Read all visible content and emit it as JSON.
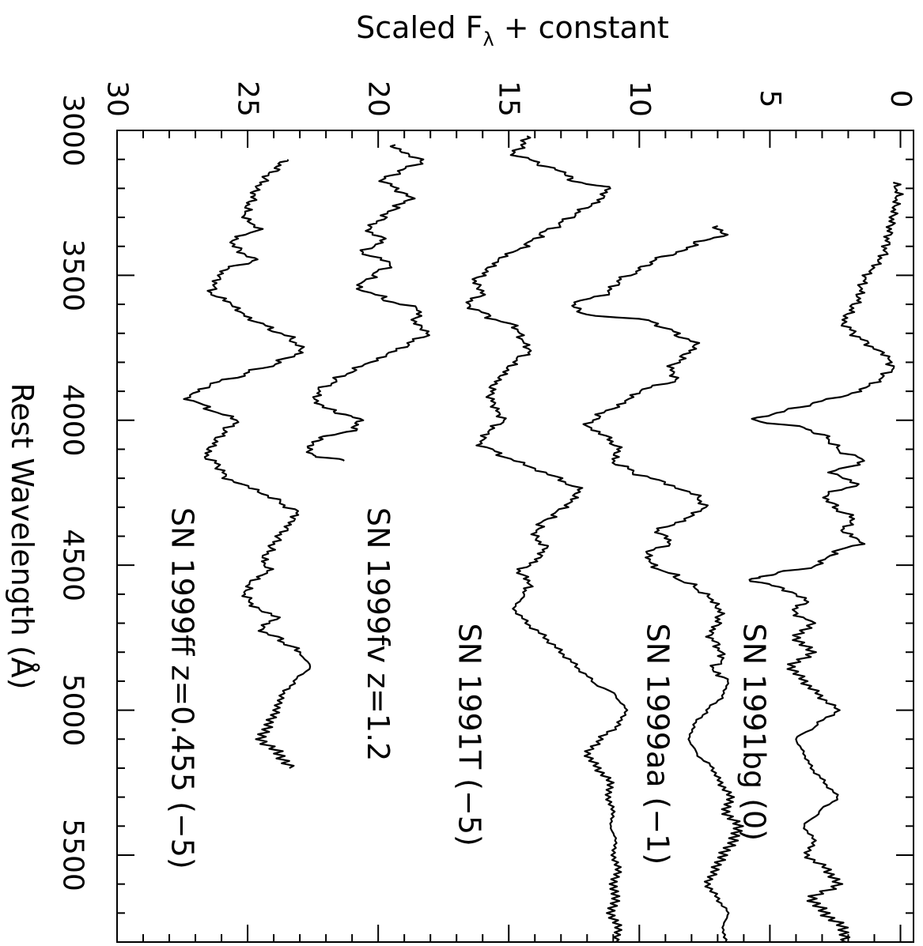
{
  "chart_data": {
    "type": "line",
    "title": "",
    "xlabel": "Rest Wavelength (Å)",
    "ylabel": "Scaled F",
    "ylabel_sub": "λ",
    "ylabel_suffix": " + constant",
    "xlim": [
      3000,
      5800
    ],
    "ylim": [
      -0.5,
      30
    ],
    "x_ticks": [
      3000,
      3500,
      4000,
      4500,
      5000,
      5500
    ],
    "y_ticks": [
      0,
      5,
      10,
      15,
      20,
      25,
      30
    ],
    "grid": false,
    "series": [
      {
        "name": "SN 1999ff z=0.455 (−5)",
        "x": [
          3100,
          3130,
          3160,
          3200,
          3230,
          3260,
          3300,
          3340,
          3380,
          3420,
          3450,
          3480,
          3520,
          3560,
          3600,
          3640,
          3680,
          3720,
          3760,
          3800,
          3840,
          3880,
          3920,
          3960,
          4000,
          4040,
          4080,
          4120,
          4160,
          4200,
          4240,
          4280,
          4320,
          4360,
          4400,
          4440,
          4480,
          4520,
          4560,
          4600,
          4640,
          4680,
          4720,
          4760,
          4800,
          4850,
          4900,
          4950,
          5000,
          5050,
          5100,
          5150,
          5200
        ],
        "y": [
          23.5,
          23.9,
          24.3,
          24.6,
          24.8,
          25.0,
          25.1,
          24.6,
          25.6,
          25.3,
          24.7,
          25.9,
          26.2,
          26.4,
          25.6,
          25.1,
          24.2,
          23.3,
          22.9,
          23.8,
          25.1,
          26.5,
          27.3,
          26.5,
          25.4,
          25.9,
          26.3,
          26.6,
          26.1,
          25.8,
          24.7,
          23.8,
          23.1,
          23.4,
          23.8,
          24.1,
          24.4,
          24.2,
          24.9,
          25.1,
          24.8,
          23.9,
          24.5,
          23.7,
          23.0,
          22.6,
          23.2,
          23.7,
          23.9,
          24.2,
          24.5,
          23.8,
          23.4
        ]
      },
      {
        "name": "SN 1999fv z=1.2",
        "x": [
          3050,
          3080,
          3110,
          3140,
          3170,
          3200,
          3230,
          3260,
          3300,
          3340,
          3380,
          3420,
          3460,
          3500,
          3540,
          3580,
          3620,
          3660,
          3700,
          3740,
          3780,
          3820,
          3860,
          3900,
          3940,
          3970,
          4000,
          4030,
          4060,
          4090,
          4120,
          4140
        ],
        "y": [
          19.5,
          18.9,
          18.3,
          19.2,
          19.8,
          19.4,
          18.7,
          19.3,
          19.8,
          20.4,
          19.8,
          20.6,
          19.5,
          20.2,
          20.8,
          19.8,
          18.4,
          18.6,
          18.1,
          18.9,
          19.8,
          20.8,
          21.6,
          22.3,
          22.4,
          21.6,
          20.7,
          20.9,
          22.1,
          22.7,
          22.5,
          21.3
        ]
      },
      {
        "name": "SN 1991T (−5)",
        "x": [
          3020,
          3050,
          3080,
          3110,
          3140,
          3170,
          3200,
          3240,
          3280,
          3320,
          3360,
          3400,
          3440,
          3480,
          3520,
          3560,
          3600,
          3640,
          3680,
          3720,
          3760,
          3800,
          3840,
          3880,
          3920,
          3960,
          4000,
          4040,
          4080,
          4120,
          4160,
          4200,
          4240,
          4280,
          4320,
          4360,
          4400,
          4440,
          4480,
          4520,
          4560,
          4600,
          4650,
          4700,
          4750,
          4800,
          4850,
          4900,
          4950,
          5000,
          5050,
          5100,
          5150,
          5200,
          5250,
          5300,
          5350,
          5400,
          5450,
          5500,
          5550,
          5600,
          5650,
          5700,
          5750,
          5800
        ],
        "y": [
          14.2,
          14.5,
          14.8,
          14.0,
          13.0,
          12.6,
          11.2,
          11.5,
          12.3,
          13.0,
          13.8,
          14.4,
          15.3,
          15.8,
          16.3,
          16.0,
          16.6,
          15.8,
          14.7,
          14.5,
          14.2,
          14.8,
          15.2,
          15.6,
          15.7,
          15.5,
          15.2,
          15.8,
          16.1,
          15.3,
          14.2,
          13.1,
          12.3,
          12.6,
          13.2,
          13.8,
          14.0,
          13.6,
          13.9,
          14.6,
          14.2,
          14.4,
          14.8,
          14.3,
          13.6,
          13.0,
          12.4,
          11.8,
          10.9,
          10.5,
          10.8,
          11.5,
          12.0,
          11.6,
          11.1,
          11.2,
          11.0,
          11.1,
          10.9,
          11.0,
          10.8,
          11.0,
          10.9,
          11.1,
          10.8,
          10.9
        ]
      },
      {
        "name": "SN 1999aa (−1)",
        "x": [
          3330,
          3360,
          3390,
          3420,
          3450,
          3480,
          3520,
          3560,
          3600,
          3630,
          3660,
          3700,
          3740,
          3780,
          3820,
          3860,
          3900,
          3940,
          3980,
          4020,
          4060,
          4100,
          4140,
          4180,
          4220,
          4260,
          4300,
          4340,
          4380,
          4420,
          4460,
          4500,
          4540,
          4580,
          4620,
          4660,
          4700,
          4740,
          4780,
          4820,
          4860,
          4900,
          4950,
          5000,
          5050,
          5100,
          5150,
          5200,
          5250,
          5300,
          5350,
          5400,
          5450,
          5500,
          5550,
          5600,
          5650,
          5700,
          5750,
          5800
        ],
        "y": [
          7.0,
          6.8,
          7.8,
          8.5,
          9.5,
          10.0,
          10.8,
          11.2,
          12.6,
          12.2,
          9.5,
          8.6,
          7.8,
          8.3,
          8.8,
          8.6,
          10.0,
          10.6,
          11.5,
          12.0,
          11.2,
          10.8,
          11.0,
          10.2,
          8.9,
          7.8,
          7.5,
          8.2,
          9.3,
          8.8,
          9.7,
          9.5,
          8.6,
          7.8,
          7.2,
          6.9,
          7.0,
          7.3,
          7.0,
          6.8,
          7.2,
          6.6,
          6.8,
          7.4,
          7.9,
          8.1,
          7.8,
          7.2,
          6.9,
          6.5,
          6.7,
          6.2,
          6.4,
          6.8,
          7.1,
          7.4,
          7.0,
          6.6,
          6.8,
          6.7
        ]
      },
      {
        "name": "SN 1991bg (0)",
        "x": [
          3180,
          3220,
          3260,
          3300,
          3340,
          3380,
          3420,
          3460,
          3500,
          3540,
          3580,
          3620,
          3660,
          3700,
          3740,
          3780,
          3820,
          3860,
          3900,
          3940,
          3970,
          4000,
          4030,
          4060,
          4100,
          4140,
          4180,
          4220,
          4260,
          4300,
          4340,
          4380,
          4420,
          4460,
          4500,
          4530,
          4550,
          4580,
          4620,
          4660,
          4700,
          4750,
          4800,
          4850,
          4900,
          4950,
          5000,
          5050,
          5100,
          5150,
          5200,
          5250,
          5300,
          5350,
          5400,
          5450,
          5500,
          5550,
          5600,
          5650,
          5700,
          5750,
          5800
        ],
        "y": [
          0.2,
          0.1,
          0.2,
          0.3,
          0.4,
          0.5,
          0.6,
          0.9,
          1.3,
          1.5,
          1.6,
          1.9,
          2.2,
          1.8,
          1.2,
          0.5,
          0.3,
          0.8,
          1.6,
          3.2,
          4.6,
          5.6,
          3.5,
          2.8,
          2.4,
          1.4,
          2.6,
          1.7,
          2.9,
          2.5,
          1.8,
          2.2,
          1.5,
          2.6,
          3.2,
          4.8,
          5.8,
          4.5,
          3.6,
          4.1,
          3.4,
          4.0,
          3.4,
          4.2,
          3.7,
          3.1,
          2.4,
          3.2,
          4.0,
          3.7,
          3.4,
          2.9,
          2.4,
          3.1,
          3.7,
          3.3,
          3.6,
          2.8,
          2.4,
          3.4,
          2.9,
          2.2,
          2.1
        ]
      }
    ],
    "annotations": [
      {
        "text": "SN 1999ff z=0.455 (−5)",
        "x": 4300,
        "y": 27.5
      },
      {
        "text": "SN 1999fv z=1.2",
        "x": 4300,
        "y": 20.0
      },
      {
        "text": "SN 1991T  (−5)",
        "x": 4700,
        "y": 16.5
      },
      {
        "text": "SN 1999aa (−1)",
        "x": 4700,
        "y": 9.3
      },
      {
        "text": "SN 1991bg  (0)",
        "x": 4700,
        "y": 5.6
      }
    ]
  }
}
